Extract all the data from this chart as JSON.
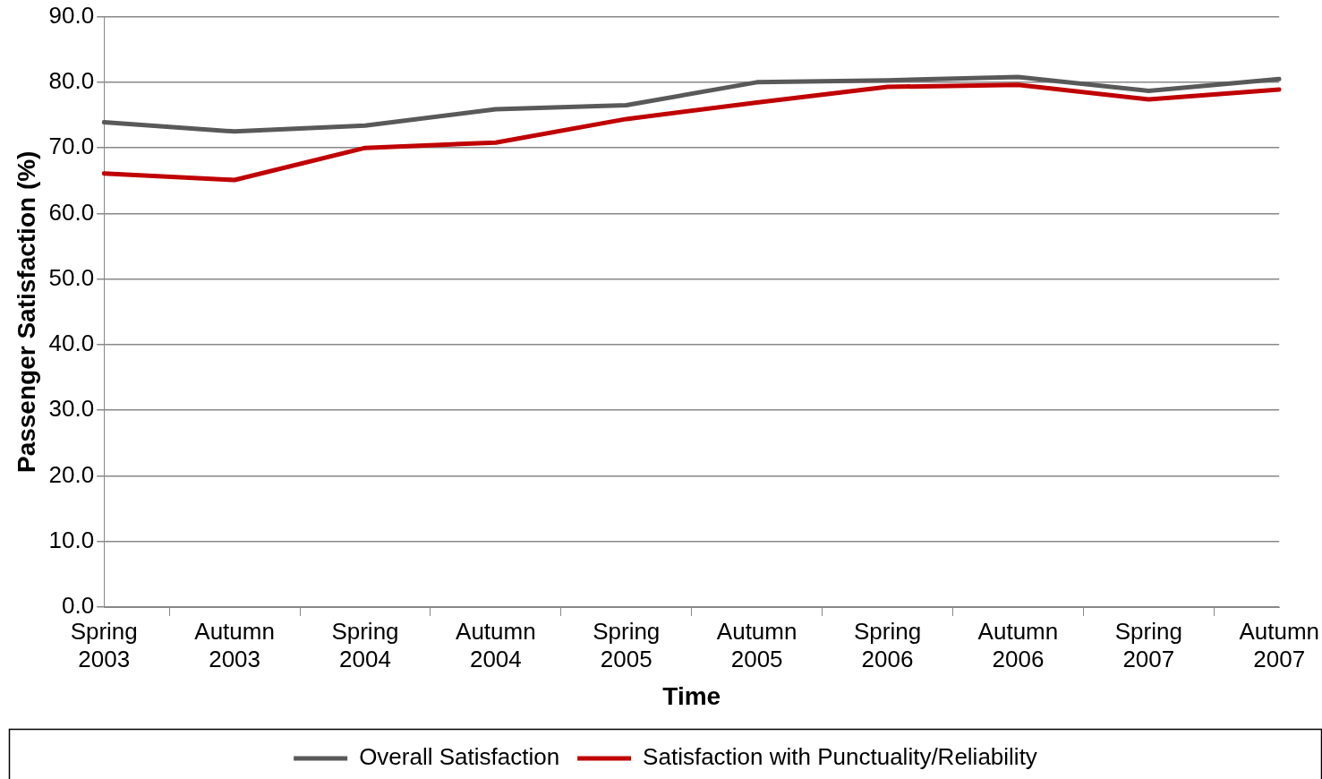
{
  "chart_data": {
    "type": "line",
    "xlabel": "Time",
    "ylabel": "Passenger Satisfaction (%)",
    "categories": [
      "Spring 2003",
      "Autumn 2003",
      "Spring 2004",
      "Autumn 2004",
      "Spring 2005",
      "Autumn 2005",
      "Spring 2006",
      "Autumn 2006",
      "Spring 2007",
      "Autumn 2007"
    ],
    "series": [
      {
        "name": "Overall Satisfaction",
        "color": "#595959",
        "values": [
          73.9,
          72.5,
          73.4,
          75.9,
          76.5,
          80.0,
          80.3,
          80.8,
          78.7,
          80.5
        ]
      },
      {
        "name": "Satisfaction with Punctuality/Reliability",
        "color": "#c00000",
        "values": [
          66.1,
          65.1,
          70.0,
          70.8,
          74.4,
          76.9,
          79.3,
          79.6,
          77.4,
          78.9
        ]
      }
    ],
    "ylim": [
      0,
      90
    ],
    "yticks": [
      {
        "value": 0,
        "label": "0.0"
      },
      {
        "value": 10,
        "label": "10.0"
      },
      {
        "value": 20,
        "label": "20.0"
      },
      {
        "value": 30,
        "label": "30.0"
      },
      {
        "value": 40,
        "label": "40.0"
      },
      {
        "value": 50,
        "label": "50.0"
      },
      {
        "value": 60,
        "label": "60.0"
      },
      {
        "value": 70,
        "label": "70.0"
      },
      {
        "value": 80,
        "label": "80.0"
      },
      {
        "value": 90,
        "label": "90.0"
      }
    ],
    "grid": "y",
    "legend": "bottom",
    "marker": "none",
    "line_style": "solid"
  }
}
